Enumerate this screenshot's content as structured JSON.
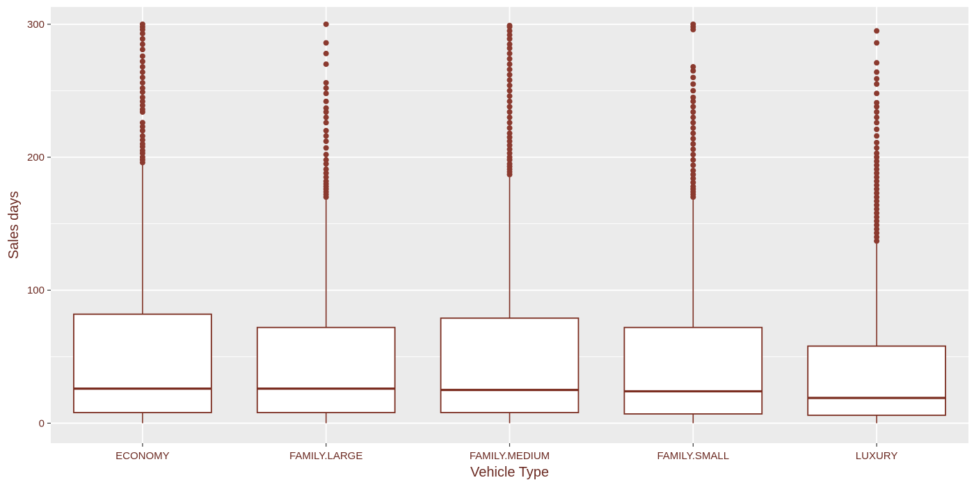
{
  "chart_data": {
    "type": "boxplot",
    "title": "",
    "xlabel": "Vehicle Type",
    "ylabel": "Sales days",
    "ylim": [
      -15,
      313
    ],
    "y_ticks": [
      0,
      100,
      200,
      300
    ],
    "y_tick_labels": [
      "0",
      "100",
      "200",
      "300"
    ],
    "grid": true,
    "colors": {
      "panel_background": "#ebebeb",
      "grid": "#ffffff",
      "box_stroke": "#7b2d20",
      "box_fill": "#ffffff",
      "outlier": "#8b3a2f",
      "text": "#6b2a22"
    },
    "categories": [
      "ECONOMY",
      "FAMILY.LARGE",
      "FAMILY.MEDIUM",
      "FAMILY.SMALL",
      "LUXURY"
    ],
    "series": [
      {
        "category": "ECONOMY",
        "min": 0,
        "q1": 8,
        "median": 26,
        "q3": 82,
        "whisker_high": 194,
        "outliers": [
          196,
          198,
          200,
          203,
          205,
          208,
          210,
          213,
          216,
          220,
          223,
          226,
          234,
          236,
          239,
          242,
          245,
          249,
          252,
          256,
          260,
          264,
          268,
          272,
          276,
          281,
          285,
          289,
          293,
          296,
          298,
          300
        ]
      },
      {
        "category": "FAMILY.LARGE",
        "min": 0,
        "q1": 8,
        "median": 26,
        "q3": 72,
        "whisker_high": 168,
        "outliers": [
          170,
          172,
          174,
          176,
          178,
          180,
          182,
          185,
          188,
          191,
          195,
          198,
          202,
          207,
          212,
          216,
          220,
          226,
          230,
          234,
          237,
          242,
          248,
          252,
          256,
          270,
          278,
          286,
          300
        ]
      },
      {
        "category": "FAMILY.MEDIUM",
        "min": 0,
        "q1": 8,
        "median": 25,
        "q3": 79,
        "whisker_high": 185,
        "outliers": [
          187,
          189,
          191,
          193,
          195,
          198,
          200,
          203,
          206,
          209,
          212,
          215,
          218,
          222,
          226,
          230,
          234,
          238,
          242,
          246,
          250,
          254,
          258,
          262,
          266,
          270,
          274,
          278,
          282,
          285,
          289,
          292,
          295,
          298,
          299
        ]
      },
      {
        "category": "FAMILY.SMALL",
        "min": 0,
        "q1": 7,
        "median": 24,
        "q3": 72,
        "whisker_high": 168,
        "outliers": [
          170,
          172,
          174,
          176,
          178,
          181,
          184,
          187,
          190,
          194,
          198,
          202,
          206,
          210,
          214,
          218,
          222,
          226,
          230,
          234,
          238,
          242,
          245,
          250,
          255,
          260,
          265,
          268,
          296,
          298,
          300
        ]
      },
      {
        "category": "LUXURY",
        "min": 0,
        "q1": 6,
        "median": 19,
        "q3": 58,
        "whisker_high": 135,
        "outliers": [
          137,
          140,
          143,
          146,
          149,
          152,
          155,
          158,
          161,
          164,
          167,
          170,
          173,
          176,
          179,
          182,
          185,
          188,
          191,
          194,
          197,
          200,
          203,
          207,
          211,
          216,
          221,
          226,
          230,
          234,
          238,
          241,
          248,
          255,
          259,
          264,
          271,
          286,
          295
        ]
      }
    ]
  }
}
